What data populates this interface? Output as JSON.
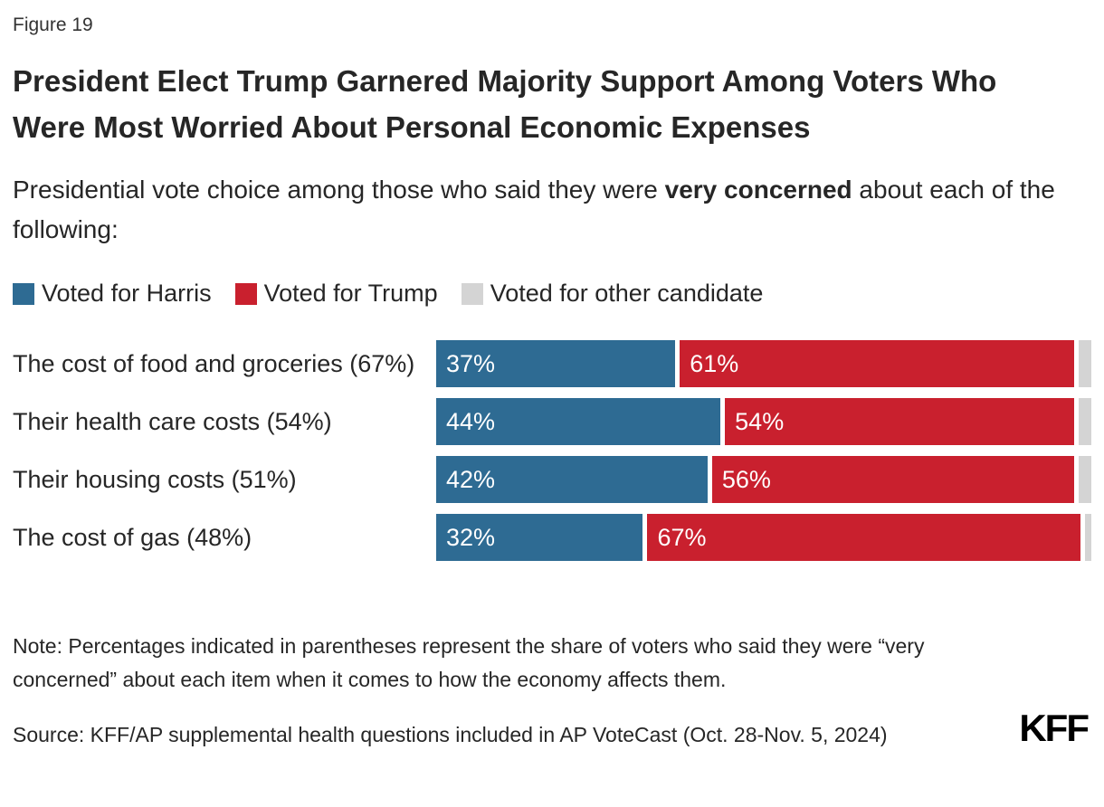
{
  "figure_label": "Figure 19",
  "title": "President Elect Trump Garnered Majority Support Among Voters Who Were Most Worried About Personal Economic Expenses",
  "subtitle": {
    "prefix": "Presidential vote choice among those who said they were ",
    "bold": "very concerned",
    "suffix": " about each of the following:"
  },
  "colors": {
    "harris": "#2E6B93",
    "trump": "#C9202E",
    "other": "#D4D4D4"
  },
  "legend": {
    "harris_label": "Voted for Harris",
    "trump_label": "Voted for Trump",
    "other_label": "Voted for other candidate"
  },
  "chart_data": {
    "type": "bar",
    "subtype": "stacked-horizontal",
    "categories": [
      "The cost of food and groceries (67%)",
      "Their health care costs (54%)",
      "Their housing costs (51%)",
      "The cost of gas (48%)"
    ],
    "series": [
      {
        "name": "Voted for Harris",
        "values": [
          37,
          44,
          42,
          32
        ]
      },
      {
        "name": "Voted for Trump",
        "values": [
          61,
          54,
          56,
          67
        ]
      },
      {
        "name": "Voted for other candidate",
        "values": [
          2,
          2,
          2,
          1
        ]
      }
    ],
    "xlim": [
      0,
      100
    ],
    "grid": false,
    "legend_position": "top",
    "rows": [
      {
        "label": "The cost of food and groceries (67%)",
        "harris": 37,
        "harris_label": "37%",
        "trump": 61,
        "trump_label": "61%",
        "other": 2
      },
      {
        "label": "Their health care costs (54%)",
        "harris": 44,
        "harris_label": "44%",
        "trump": 54,
        "trump_label": "54%",
        "other": 2
      },
      {
        "label": "Their housing costs (51%)",
        "harris": 42,
        "harris_label": "42%",
        "trump": 56,
        "trump_label": "56%",
        "other": 2
      },
      {
        "label": "The cost of gas (48%)",
        "harris": 32,
        "harris_label": "32%",
        "trump": 67,
        "trump_label": "67%",
        "other": 1
      }
    ]
  },
  "note": "Note: Percentages indicated in parentheses represent the share of voters who said they were “very concerned” about each item when it comes to how the economy affects them.",
  "source": "Source: KFF/AP supplemental health questions included in AP VoteCast (Oct. 28-Nov. 5, 2024)",
  "logo": "KFF"
}
